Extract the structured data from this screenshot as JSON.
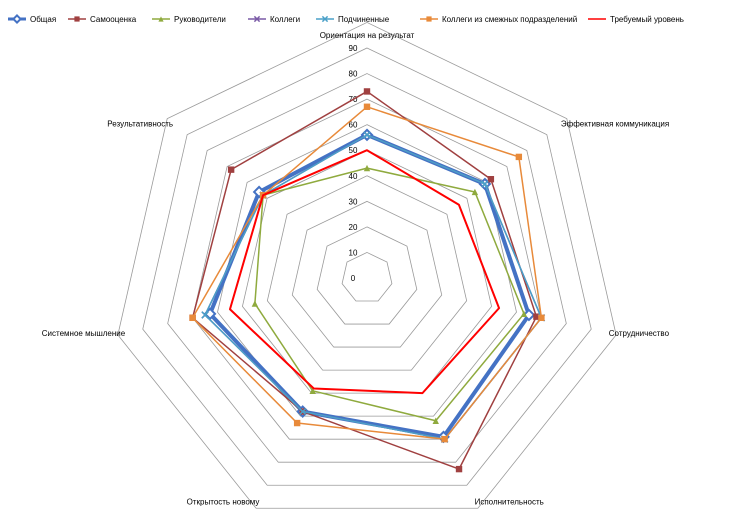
{
  "chart_data": {
    "type": "radar",
    "axes": [
      "Ориентация на результат",
      "Эффективная коммуникация",
      "Сотрудничество",
      "Исполнительность",
      "Открытость новому",
      "Системное мышление",
      "Результативность"
    ],
    "rlim": [
      0,
      90
    ],
    "ticks": [
      "0",
      "10",
      "20",
      "30",
      "40",
      "50",
      "60",
      "70",
      "80",
      "90"
    ],
    "grid": true,
    "legend_position": "top",
    "series": [
      {
        "name": "Общая",
        "color": "#4472c4",
        "marker": "diamond",
        "width": 4,
        "values": [
          56,
          59,
          65,
          69,
          58,
          63,
          54
        ]
      },
      {
        "name": "Самооценка",
        "color": "#a04040",
        "marker": "square",
        "width": 1.5,
        "values": [
          73,
          62,
          68,
          83,
          58,
          70,
          68
        ]
      },
      {
        "name": "Руководители",
        "color": "#8faa3e",
        "marker": "triangle",
        "width": 1.5,
        "values": [
          43,
          54,
          63,
          62,
          49,
          45,
          52
        ]
      },
      {
        "name": "Коллеги",
        "color": "#7a5aa6",
        "marker": "x",
        "width": 1.5,
        "values": [
          56,
          59,
          70,
          70,
          58,
          65,
          52
        ]
      },
      {
        "name": "Подчиненные",
        "color": "#4aa0c8",
        "marker": "x",
        "width": 1.5,
        "values": [
          56,
          59,
          70,
          70,
          58,
          65,
          52
        ]
      },
      {
        "name": "Коллеги из смежных подразделений",
        "color": "#e88a3a",
        "marker": "square",
        "width": 1.5,
        "values": [
          67,
          76,
          70,
          70,
          63,
          70,
          52
        ]
      },
      {
        "name": "Требуемый уровень",
        "color": "#ff0000",
        "marker": "none",
        "width": 2,
        "values": [
          50,
          46,
          53,
          50,
          48,
          55,
          52
        ]
      }
    ]
  }
}
